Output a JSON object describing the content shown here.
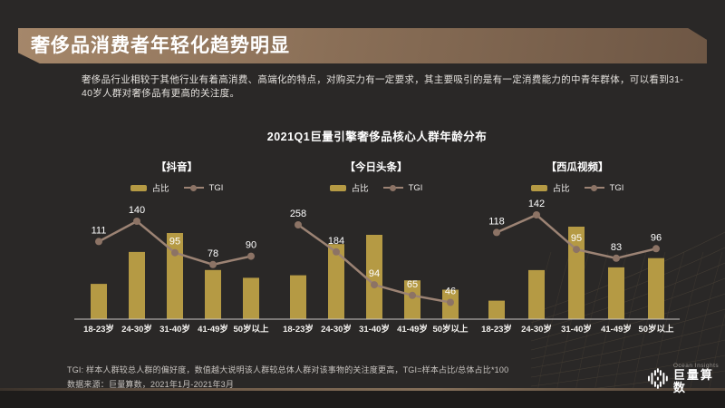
{
  "slide": {
    "title": "奢侈品消费者年轻化趋势明显",
    "intro_line1": "奢侈品行业相较于其他行业有着高消费、高端化的特点，对购买力有一定要求，其主要吸引的是有一定消费能力的中青年群体，可以看到31-",
    "intro_line2": "40岁人群对奢侈品有更高的关注度。",
    "section_title": "2021Q1巨量引擎奢侈品核心人群年龄分布"
  },
  "footer": {
    "tgi_note": "TGI: 样本人群较总人群的偏好度，数值越大说明该人群较总体人群对该事物的关注度更高，TGI=样本占比/总体占比*100",
    "source_note": "数据来源：巨量算数，2021年1月-2021年3月",
    "brand_en": "Ocean Insights",
    "brand_cn": "巨量算数"
  },
  "colors": {
    "background": "#2a2827",
    "header_gradient_start": "#a5876a",
    "header_gradient_end": "#6d5644",
    "bar": "#b59a44",
    "line": "#9c8374",
    "marker": "#8c7365",
    "axis": "#c9c6c3",
    "value_label": "#ffffff",
    "tick_label": "#f3f1ee",
    "footer_strip": "#1e1c1b"
  },
  "chart_data": [
    {
      "type": "bar",
      "combo": "bar+line",
      "title": "【抖音】",
      "platform": "抖音",
      "categories": [
        "18-23岁",
        "24-30岁",
        "31-40岁",
        "41-49岁",
        "50岁以上"
      ],
      "legend": [
        "占比",
        "TGI"
      ],
      "value_labels_shown": "TGI only",
      "series": [
        {
          "name": "占比",
          "type": "bar",
          "unit": "unlabeled; estimated relative height, tallest bar = 100",
          "values": [
            41,
            78,
            100,
            57,
            48
          ]
        },
        {
          "name": "TGI",
          "type": "line",
          "values": [
            111,
            140,
            95,
            78,
            90
          ]
        }
      ]
    },
    {
      "type": "bar",
      "combo": "bar+line",
      "title": "【今日头条】",
      "platform": "今日头条",
      "categories": [
        "18-23岁",
        "24-30岁",
        "31-40岁",
        "41-49岁",
        "50岁以上"
      ],
      "legend": [
        "占比",
        "TGI"
      ],
      "value_labels_shown": "TGI only",
      "series": [
        {
          "name": "占比",
          "type": "bar",
          "unit": "unlabeled; estimated relative height, tallest bar = 100",
          "values": [
            52,
            89,
            100,
            46,
            35
          ]
        },
        {
          "name": "TGI",
          "type": "line",
          "values": [
            258,
            184,
            94,
            65,
            46
          ]
        }
      ]
    },
    {
      "type": "bar",
      "combo": "bar+line",
      "title": "【西瓜视频】",
      "platform": "西瓜视频",
      "categories": [
        "18-23岁",
        "24-30岁",
        "31-40岁",
        "41-49岁",
        "50岁以上"
      ],
      "legend": [
        "占比",
        "TGI"
      ],
      "value_labels_shown": "TGI only",
      "series": [
        {
          "name": "占比",
          "type": "bar",
          "unit": "unlabeled; estimated relative height, tallest bar = 100",
          "values": [
            20,
            53,
            100,
            56,
            66
          ]
        },
        {
          "name": "TGI",
          "type": "line",
          "values": [
            118,
            142,
            95,
            83,
            96
          ]
        }
      ]
    }
  ]
}
